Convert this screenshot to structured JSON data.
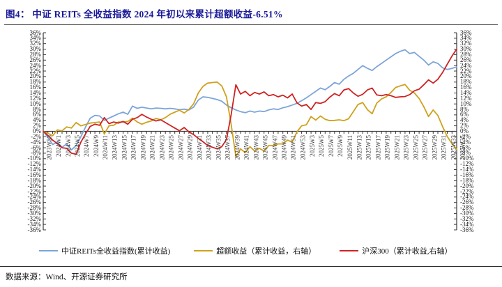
{
  "header": {
    "title": "图4：  中证 REITs 全收益指数 2024 年初以来累计超额收益-6.51%"
  },
  "footer": {
    "source_label": "数据来源：Wind、开源证券研究所"
  },
  "chart_data": {
    "type": "line",
    "title": "中证REITs全收益指数2024年初以来累计超额收益-6.51%",
    "grid": false,
    "legend_position": "bottom",
    "y_axis_left": {
      "min": -36,
      "max": 36,
      "step": 2,
      "unit": "%"
    },
    "y_axis_right": {
      "min": -36,
      "max": 36,
      "step": 2,
      "unit": "%"
    },
    "x_tick_labels": [
      "2023W53",
      "2024W1",
      "2024W3",
      "2024W5",
      "2024W7",
      "2024W9",
      "2024W11",
      "2024W13",
      "2024W15",
      "2024W17",
      "2024W19",
      "2024W21",
      "2024W23",
      "2024W25",
      "2024W27",
      "2024W29",
      "2024W31",
      "2024W33",
      "2024W35",
      "2024W37",
      "2024W39",
      "2024W41",
      "2024W43",
      "2024W45",
      "2024W47",
      "2024W49",
      "2024W51",
      "2024W53",
      "2025W3",
      "2025W5",
      "2025W7",
      "2025W9",
      "2025W11",
      "2025W13",
      "2025W15",
      "2025W17",
      "2025W19",
      "2025W21",
      "2025W23",
      "2025W25",
      "2025W27",
      "2025W29",
      "2025W31",
      "2025W33",
      "2025W35"
    ],
    "x_labels_every_n_points": 2,
    "series": [
      {
        "name": "中证REITs全收益指数(累计收益)",
        "axis": "left",
        "color": "#7ca5d9",
        "values": [
          0,
          -2.2,
          -4.8,
          -4.0,
          -5.8,
          -4.6,
          -6.8,
          -5.2,
          -2.0,
          1.5,
          4.8,
          5.8,
          5.6,
          4.0,
          4.8,
          5.6,
          6.4,
          7.0,
          6.2,
          9.2,
          8.4,
          8.8,
          8.5,
          8.2,
          8.5,
          8.4,
          8.2,
          8.4,
          8.2,
          7.9,
          8.1,
          7.8,
          8.8,
          11.4,
          12.6,
          12.4,
          12.0,
          11.6,
          11.0,
          9.6,
          8.6,
          7.8,
          7.2,
          6.8,
          7.4,
          7.0,
          7.4,
          7.2,
          7.8,
          8.2,
          8.0,
          8.6,
          9.0,
          9.6,
          10.2,
          11.2,
          12.2,
          13.4,
          14.6,
          15.8,
          15.2,
          16.4,
          17.8,
          17.2,
          19.0,
          20.2,
          21.2,
          22.6,
          24.0,
          23.0,
          22.2,
          23.6,
          24.8,
          26.0,
          27.2,
          28.4,
          29.2,
          29.8,
          28.4,
          28.8,
          27.4,
          26.0,
          24.2,
          25.4,
          24.8,
          23.2,
          22.6,
          23.0,
          23.5
        ]
      },
      {
        "name": "超额收益（累计收益，右轴）",
        "axis": "right",
        "color": "#cfa11c",
        "values": [
          0,
          -0.7,
          -1.6,
          0.5,
          0.2,
          1.6,
          1.2,
          3.2,
          2.0,
          2.5,
          3.0,
          3.2,
          3.4,
          -1.0,
          2.0,
          2.2,
          3.4,
          3.4,
          3.6,
          4.8,
          3.4,
          2.6,
          3.3,
          3.8,
          4.7,
          4.2,
          5.0,
          6.2,
          7.0,
          7.7,
          6.7,
          8.0,
          10.0,
          14.0,
          16.4,
          17.6,
          17.8,
          18.0,
          16.6,
          12.6,
          2.6,
          -9.2,
          -6.4,
          -7.8,
          -5.6,
          -7.2,
          -6.2,
          -7.2,
          -5.2,
          -5.2,
          -4.6,
          -4.6,
          -3.2,
          -4.0,
          -0.2,
          2.0,
          2.4,
          5.4,
          4.1,
          5.6,
          4.4,
          3.9,
          4.0,
          4.2,
          3.9,
          4.6,
          7.2,
          9.8,
          10.5,
          7.9,
          6.4,
          10.3,
          11.8,
          12.6,
          14.2,
          16.0,
          16.6,
          17.1,
          15.0,
          14.0,
          12.0,
          9.0,
          5.4,
          7.8,
          5.8,
          1.7,
          -1.9,
          -4.5,
          -6.5
        ]
      },
      {
        "name": "沪深300（累计收益,右轴）",
        "axis": "right",
        "color": "#ce2222",
        "values": [
          0,
          -1.5,
          -3.2,
          -4.5,
          -6.0,
          -6.2,
          -8.0,
          -8.4,
          -4.0,
          -1.0,
          1.8,
          2.6,
          2.2,
          5.0,
          2.8,
          3.4,
          3.0,
          3.6,
          2.6,
          4.4,
          5.0,
          6.2,
          5.2,
          4.4,
          3.8,
          4.2,
          3.2,
          2.2,
          1.2,
          0.2,
          1.4,
          -0.2,
          -1.2,
          -2.6,
          -3.8,
          -5.2,
          -5.8,
          -6.4,
          -5.6,
          -3.0,
          6.0,
          17.0,
          13.6,
          14.6,
          13.0,
          14.2,
          13.6,
          14.4,
          13.0,
          13.4,
          12.6,
          13.2,
          12.2,
          13.6,
          10.4,
          9.2,
          9.8,
          8.0,
          10.5,
          10.2,
          10.8,
          12.5,
          13.8,
          13.0,
          15.1,
          15.6,
          14.0,
          12.8,
          13.5,
          15.1,
          15.8,
          13.3,
          13.0,
          13.4,
          13.0,
          12.4,
          12.6,
          12.7,
          13.4,
          14.8,
          15.4,
          17.0,
          18.8,
          17.6,
          19.0,
          21.5,
          24.5,
          27.5,
          30.0
        ]
      }
    ]
  }
}
